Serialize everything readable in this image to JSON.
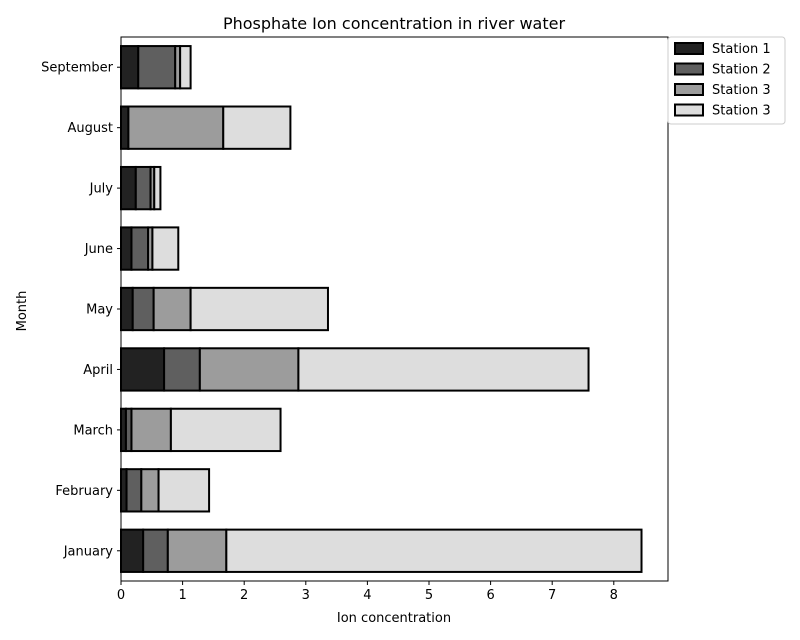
{
  "chart_data": {
    "type": "bar",
    "orientation": "horizontal",
    "stacked": true,
    "title": "Phosphate Ion  concentration in river water",
    "xlabel": "Ion concentration",
    "ylabel": "Month",
    "xlim": [
      0,
      8.88
    ],
    "xticks": [
      0,
      1,
      2,
      3,
      4,
      5,
      6,
      7,
      8
    ],
    "categories": [
      "January",
      "February",
      "March",
      "April",
      "May",
      "June",
      "July",
      "August",
      "September"
    ],
    "series": [
      {
        "name": "Station 1",
        "color": "#222222",
        "values": [
          0.36,
          0.09,
          0.08,
          0.7,
          0.19,
          0.17,
          0.24,
          0.12,
          0.28
        ]
      },
      {
        "name": "Station  2",
        "color": "#5f5f5f",
        "values": [
          0.4,
          0.24,
          0.09,
          0.58,
          0.34,
          0.27,
          0.24,
          0.0,
          0.6
        ]
      },
      {
        "name": "Station 3",
        "color": "#9c9c9c",
        "values": [
          0.95,
          0.28,
          0.64,
          1.6,
          0.6,
          0.07,
          0.06,
          1.54,
          0.08
        ]
      },
      {
        "name": "Station  3",
        "color": "#dddddd",
        "values": [
          6.74,
          0.82,
          1.78,
          4.71,
          2.23,
          0.42,
          0.1,
          1.09,
          0.17
        ]
      }
    ],
    "legend_position": "outside-top-right",
    "grid": false
  }
}
